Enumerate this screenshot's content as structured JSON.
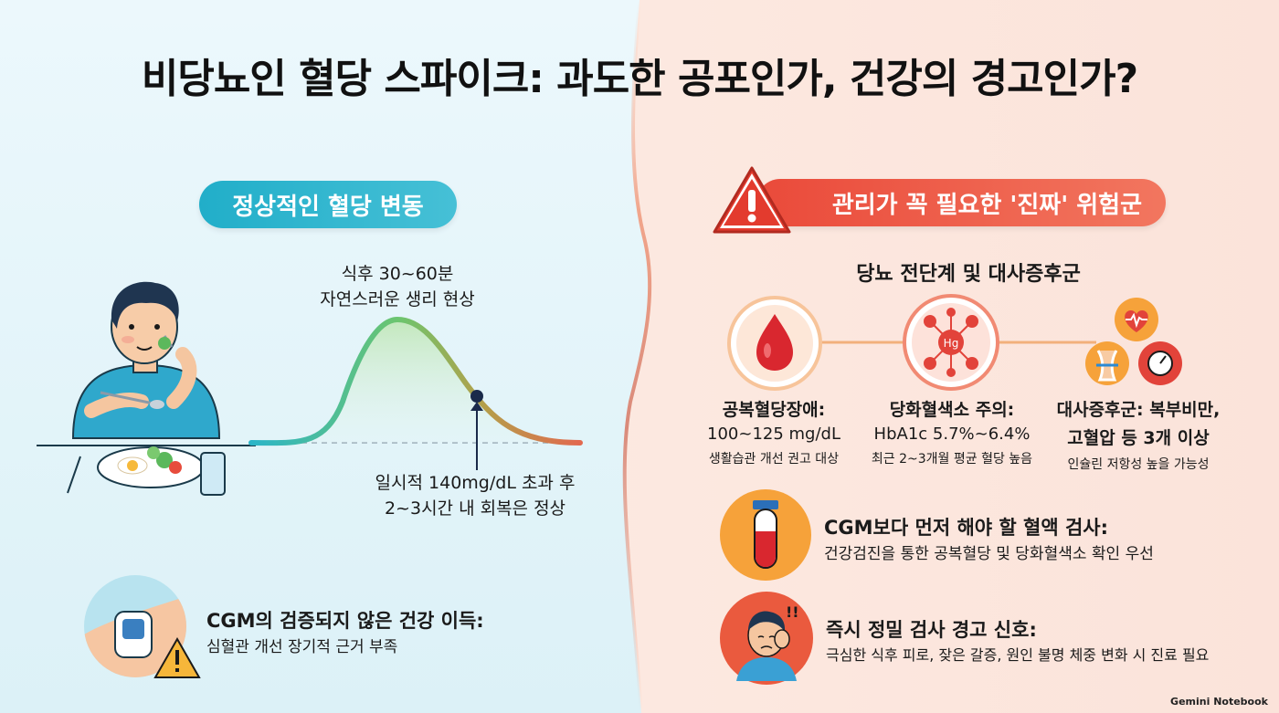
{
  "title": "비당뇨인 혈당 스파이크: 과도한 공포인가, 건강의 경고인가?",
  "left": {
    "pill": "정상적인 혈당 변동",
    "curve_top_line1": "식후 30~60분",
    "curve_top_line2": "자연스러운 생리 현상",
    "curve_bottom_line1": "일시적 140mg/dL 초과 후",
    "curve_bottom_line2": "2~3시간 내 회복은 정상",
    "cgm_title": "CGM의 검증되지 않은 건강 이득:",
    "cgm_desc": "심혈관 개선 장기적 근거 부족"
  },
  "right": {
    "pill": "관리가 꼭 필요한 '진짜' 위험군",
    "subtitle": "당뇨 전단계 및 대사증후군",
    "hg_label": "Hg",
    "cols": [
      {
        "title": "공복혈당장애:",
        "value": "100~125 mg/dL",
        "note": "생활습관 개선 권고 대상"
      },
      {
        "title": "당화혈색소 주의:",
        "value": "HbA1c 5.7%~6.4%",
        "note": "최근 2~3개월 평균 혈당 높음"
      },
      {
        "title": "대사증후군: 복부비만,",
        "value": "고혈압 등 3개 이상",
        "note": "인슐린 저항성 높을 가능성"
      }
    ],
    "blood_test_title": "CGM보다 먼저 해야 할 혈액 검사:",
    "blood_test_desc": "건강검진을 통한 공복혈당 및 당화혈색소 확인 우선",
    "warning_title": "즉시 정밀 검사 경고 신호:",
    "warning_desc": "극심한 식후 피로, 잦은 갈증, 원인 불명 체중 변화 시 진료 필요",
    "exclaim": "!!"
  },
  "brand": "Gemini Notebook",
  "colors": {
    "teal": "#21aec9",
    "coral": "#ea4a3a",
    "orange": "#f6a23a"
  }
}
